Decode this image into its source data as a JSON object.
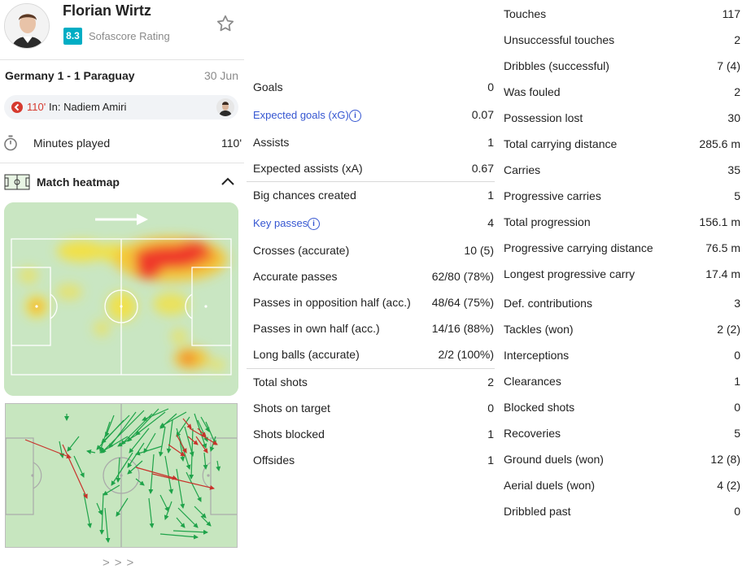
{
  "player": {
    "name": "Florian Wirtz",
    "rating": "8.3",
    "rating_label": "Sofascore Rating",
    "rating_color": "#00adc4"
  },
  "match": {
    "teams": "Germany 1 - 1 Paraguay",
    "date": "30 Jun"
  },
  "substitution": {
    "minute": "110'",
    "text": "In: Nadiem Amiri",
    "icon": "sub-out-icon",
    "color": "#d63a2f"
  },
  "minutes": {
    "label": "Minutes played",
    "value": "110'"
  },
  "heatmap": {
    "title": "Match heatmap",
    "attack_direction": "right"
  },
  "pass_nav": ">>>",
  "stats_mid": [
    {
      "label": "Goals",
      "value": "0"
    },
    {
      "label": "Expected goals (xG)",
      "value": "0.07",
      "link": true
    },
    {
      "label": "Assists",
      "value": "1"
    },
    {
      "label": "Expected assists (xA)",
      "value": "0.67"
    },
    {
      "label": "Big chances created",
      "value": "1"
    },
    {
      "label": "Key passes",
      "value": "4",
      "link": true
    },
    {
      "label": "Crosses (accurate)",
      "value": "10 (5)"
    },
    {
      "label": "Accurate passes",
      "value": "62/80 (78%)"
    },
    {
      "label": "Passes in opposition half (acc.)",
      "value": "48/64 (75%)"
    },
    {
      "label": "Passes in own half (acc.)",
      "value": "14/16 (88%)"
    },
    {
      "label": "Long balls (accurate)",
      "value": "2/2 (100%)"
    },
    {
      "label": "Total shots",
      "value": "2"
    },
    {
      "label": "Shots on target",
      "value": "0"
    },
    {
      "label": "Shots blocked",
      "value": "1"
    },
    {
      "label": "Offsides",
      "value": "1"
    }
  ],
  "stats_right": [
    {
      "label": "Touches",
      "value": "117"
    },
    {
      "label": "Unsuccessful touches",
      "value": "2"
    },
    {
      "label": "Dribbles (successful)",
      "value": "7 (4)"
    },
    {
      "label": "Was fouled",
      "value": "2"
    },
    {
      "label": "Possession lost",
      "value": "30"
    },
    {
      "label": "Total carrying distance",
      "value": "285.6 m"
    },
    {
      "label": "Carries",
      "value": "35"
    },
    {
      "label": "Progressive carries",
      "value": "5"
    },
    {
      "label": "Total progression",
      "value": "156.1 m"
    },
    {
      "label": "Progressive carrying distance",
      "value": "76.5 m"
    },
    {
      "label": "Longest progressive carry",
      "value": "17.4 m"
    },
    {
      "label": "Def. contributions",
      "value": "3"
    },
    {
      "label": "Tackles (won)",
      "value": "2 (2)"
    },
    {
      "label": "Interceptions",
      "value": "0"
    },
    {
      "label": "Clearances",
      "value": "1"
    },
    {
      "label": "Blocked shots",
      "value": "0"
    },
    {
      "label": "Recoveries",
      "value": "5"
    },
    {
      "label": "Ground duels (won)",
      "value": "12 (8)"
    },
    {
      "label": "Aerial duels (won)",
      "value": "4 (2)"
    },
    {
      "label": "Dribbled past",
      "value": "0"
    }
  ],
  "colors": {
    "pitch": "#c7e6bf",
    "pass_success": "#1fa34a",
    "pass_fail": "#c8322b",
    "link": "#3556d1"
  }
}
